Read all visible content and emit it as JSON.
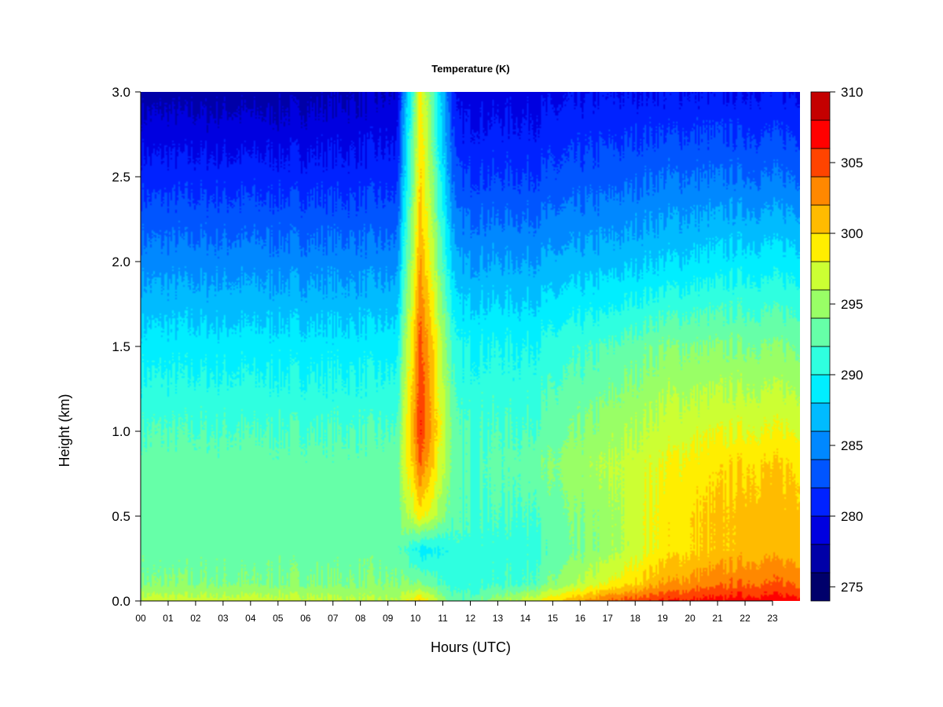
{
  "chart_data": {
    "type": "heatmap",
    "title": "Temperature (K)",
    "xlabel": "Hours (UTC)",
    "ylabel": "Height (km)",
    "xlim": [
      0,
      24
    ],
    "ylim": [
      0,
      3
    ],
    "x_tick_values": [
      0,
      1,
      2,
      3,
      4,
      5,
      6,
      7,
      8,
      9,
      10,
      11,
      12,
      13,
      14,
      15,
      16,
      17,
      18,
      19,
      20,
      21,
      22,
      23
    ],
    "x_tick_labels": [
      "00",
      "01",
      "02",
      "03",
      "04",
      "05",
      "06",
      "07",
      "08",
      "09",
      "10",
      "11",
      "12",
      "13",
      "14",
      "15",
      "16",
      "17",
      "18",
      "19",
      "20",
      "21",
      "22",
      "23"
    ],
    "y_tick_values": [
      0,
      0.5,
      1.0,
      1.5,
      2.0,
      2.5,
      3.0
    ],
    "y_tick_labels": [
      "0.0",
      "0.5",
      "1.0",
      "1.5",
      "2.0",
      "2.5",
      "3.0"
    ],
    "colorbar": {
      "levels": [
        274,
        276,
        278,
        280,
        282,
        284,
        286,
        288,
        290,
        292,
        294,
        296,
        298,
        300,
        302,
        304,
        306,
        308,
        310
      ],
      "colors": [
        "#00006b",
        "#0000a8",
        "#0000e0",
        "#0022ff",
        "#0055ff",
        "#0088ff",
        "#00bbff",
        "#00eeff",
        "#2fffe0",
        "#66ffa8",
        "#99ff66",
        "#ccff33",
        "#ffee00",
        "#ffbb00",
        "#ff8800",
        "#ff4400",
        "#ff0000",
        "#c40000",
        "#7a0000"
      ],
      "tick_values": [
        275,
        280,
        285,
        290,
        295,
        300,
        305,
        310
      ],
      "tick_labels": [
        "275",
        "280",
        "285",
        "290",
        "295",
        "300",
        "305",
        "310"
      ]
    },
    "profiles": {
      "heights_km": [
        0.0,
        0.1,
        0.3,
        0.5,
        0.8,
        1.0,
        1.5,
        2.0,
        2.5,
        3.0
      ],
      "series": [
        {
          "hour": 0,
          "temperature_K": [
            297,
            294,
            293,
            293,
            293,
            292,
            289,
            285,
            281,
            277
          ]
        },
        {
          "hour": 5,
          "temperature_K": [
            297,
            294,
            293,
            293,
            293,
            292,
            289,
            285,
            281,
            277
          ]
        },
        {
          "hour": 9.3,
          "temperature_K": [
            296,
            294,
            293,
            293,
            293,
            292,
            289,
            285,
            281,
            278
          ]
        },
        {
          "hour": 10.2,
          "temperature_K": [
            300,
            294,
            289,
            299,
            304,
            306,
            305,
            302,
            300,
            299
          ]
        },
        {
          "hour": 11.5,
          "temperature_K": [
            292,
            291,
            291,
            292,
            292,
            292,
            290,
            286,
            282,
            279
          ]
        },
        {
          "hour": 14,
          "temperature_K": [
            297,
            292,
            291,
            292,
            293,
            292,
            290,
            286,
            282,
            279
          ]
        },
        {
          "hour": 17,
          "temperature_K": [
            304,
            298,
            295,
            295,
            296,
            295,
            292,
            287,
            283,
            280
          ]
        },
        {
          "hour": 19,
          "temperature_K": [
            306,
            302,
            299,
            299,
            298,
            297,
            294,
            288,
            284,
            280
          ]
        },
        {
          "hour": 22,
          "temperature_K": [
            307,
            304,
            301,
            301,
            300,
            298,
            294,
            289,
            284,
            280
          ]
        }
      ]
    }
  }
}
